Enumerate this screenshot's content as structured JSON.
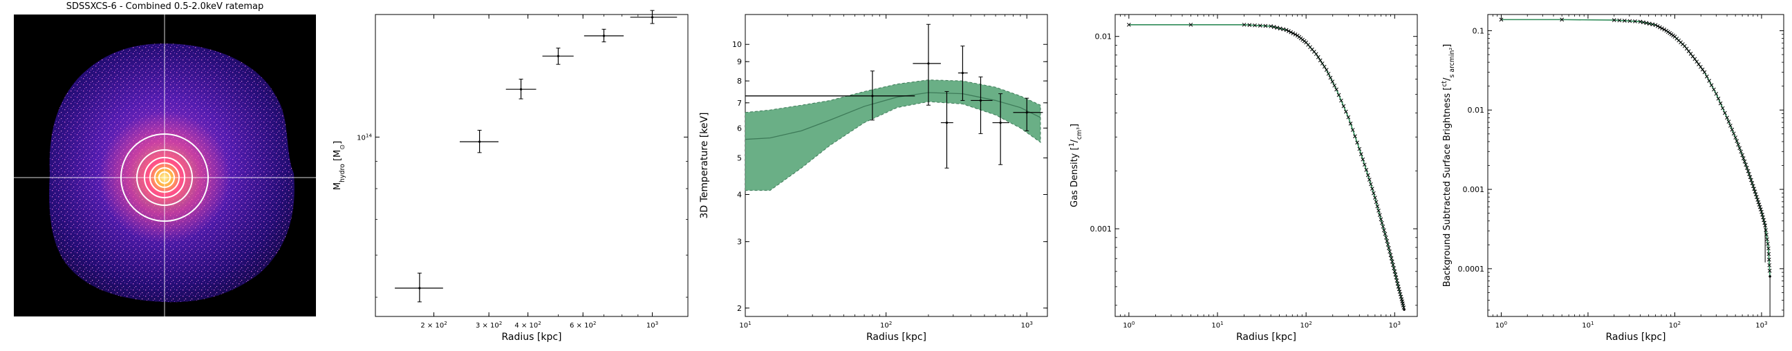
{
  "image_panel": {
    "title": "SDSSXCS-6 - Combined 0.5-2.0keV ratemap"
  },
  "chart_data": [
    {
      "type": "scatter",
      "xlabel": "Radius [kpc]",
      "ylabel": "M_hydro [M_⊙]",
      "ylabel_parts": {
        "main": "M",
        "sub": "hydro",
        "unit_open": " [M",
        "unit_sub": "⊙",
        "unit_close": "]"
      },
      "xscale": "log",
      "yscale": "log",
      "xlim": [
        130,
        1300
      ],
      "ylim": [
        46000000000000.0,
        170000000000000.0
      ],
      "xticks": [
        200,
        300,
        400,
        600,
        1000
      ],
      "xtick_labels": [
        {
          "base": "2 × 10",
          "exp": "2"
        },
        {
          "base": "3 × 10",
          "exp": "2"
        },
        {
          "base": "4 × 10",
          "exp": "2"
        },
        {
          "base": "6 × 10",
          "exp": "2"
        },
        {
          "base": "10",
          "exp": "3"
        }
      ],
      "yticks": [
        100000000000000.0
      ],
      "ytick_labels": [
        {
          "base": "10",
          "exp": "14"
        }
      ],
      "points": [
        {
          "x": 180,
          "y": 52000000000000.0,
          "xerr": [
            30,
            34
          ],
          "yerr": [
            3000000000000.0,
            3500000000000.0
          ]
        },
        {
          "x": 280,
          "y": 98000000000000.0,
          "xerr": [
            38,
            42
          ],
          "yerr": [
            4500000000000.0,
            5000000000000.0
          ]
        },
        {
          "x": 380,
          "y": 123000000000000.0,
          "xerr": [
            40,
            45
          ],
          "yerr": [
            5000000000000.0,
            5500000000000.0
          ]
        },
        {
          "x": 500,
          "y": 142000000000000.0,
          "xerr": [
            55,
            60
          ],
          "yerr": [
            5000000000000.0,
            5000000000000.0
          ]
        },
        {
          "x": 700,
          "y": 155000000000000.0,
          "xerr": [
            95,
            110
          ],
          "yerr": [
            4000000000000.0,
            4500000000000.0
          ]
        },
        {
          "x": 1000,
          "y": 168000000000000.0,
          "xerr": [
            150,
            200
          ],
          "yerr": [
            4500000000000.0,
            5000000000000.0
          ]
        }
      ],
      "colors": {
        "points": "#000000"
      }
    },
    {
      "type": "scatter",
      "xlabel": "Radius [kpc]",
      "ylabel": "3D Temperature [keV]",
      "xscale": "log",
      "yscale": "log",
      "xlim": [
        10,
        1400
      ],
      "ylim": [
        1.9,
        12
      ],
      "xticks": [
        10,
        100,
        1000
      ],
      "xtick_labels": [
        {
          "base": "10",
          "exp": "1"
        },
        {
          "base": "10",
          "exp": "2"
        },
        {
          "base": "10",
          "exp": "3"
        }
      ],
      "yticks": [
        2,
        3,
        4,
        5,
        6,
        7,
        8,
        9,
        10
      ],
      "ytick_labels": [
        "2",
        "3",
        "4",
        "5",
        "6",
        "7",
        "8",
        "9",
        "10"
      ],
      "points": [
        {
          "x": 80,
          "y": 7.3,
          "xerr": [
            70,
            80
          ],
          "yerr": [
            1.0,
            1.2
          ]
        },
        {
          "x": 200,
          "y": 8.9,
          "xerr": [
            45,
            45
          ],
          "yerr": [
            2.0,
            2.4
          ]
        },
        {
          "x": 270,
          "y": 6.2,
          "xerr": [
            25,
            30
          ],
          "yerr": [
            1.5,
            1.3
          ]
        },
        {
          "x": 350,
          "y": 8.4,
          "xerr": [
            25,
            30
          ],
          "yerr": [
            1.3,
            1.5
          ]
        },
        {
          "x": 470,
          "y": 7.1,
          "xerr": [
            70,
            100
          ],
          "yerr": [
            1.3,
            1.1
          ]
        },
        {
          "x": 650,
          "y": 6.2,
          "xerr": [
            80,
            100
          ],
          "yerr": [
            1.4,
            1.2
          ]
        },
        {
          "x": 1000,
          "y": 6.6,
          "xerr": [
            200,
            300
          ],
          "yerr": [
            0.7,
            0.6
          ]
        }
      ],
      "model_line": [
        {
          "x": 10,
          "y": 5.6
        },
        {
          "x": 15,
          "y": 5.65
        },
        {
          "x": 25,
          "y": 5.9
        },
        {
          "x": 40,
          "y": 6.3
        },
        {
          "x": 70,
          "y": 6.85
        },
        {
          "x": 120,
          "y": 7.25
        },
        {
          "x": 200,
          "y": 7.45
        },
        {
          "x": 350,
          "y": 7.4
        },
        {
          "x": 600,
          "y": 7.1
        },
        {
          "x": 900,
          "y": 6.8
        },
        {
          "x": 1250,
          "y": 6.4
        }
      ],
      "model_upper": [
        {
          "x": 10,
          "y": 6.6
        },
        {
          "x": 15,
          "y": 6.7
        },
        {
          "x": 25,
          "y": 6.9
        },
        {
          "x": 40,
          "y": 7.1
        },
        {
          "x": 70,
          "y": 7.5
        },
        {
          "x": 120,
          "y": 7.85
        },
        {
          "x": 200,
          "y": 8.05
        },
        {
          "x": 350,
          "y": 8.0
        },
        {
          "x": 600,
          "y": 7.7
        },
        {
          "x": 900,
          "y": 7.3
        },
        {
          "x": 1250,
          "y": 6.9
        }
      ],
      "model_lower": [
        {
          "x": 10,
          "y": 4.1
        },
        {
          "x": 15,
          "y": 4.1
        },
        {
          "x": 25,
          "y": 4.7
        },
        {
          "x": 40,
          "y": 5.4
        },
        {
          "x": 70,
          "y": 6.2
        },
        {
          "x": 120,
          "y": 6.8
        },
        {
          "x": 200,
          "y": 7.05
        },
        {
          "x": 350,
          "y": 6.95
        },
        {
          "x": 600,
          "y": 6.5
        },
        {
          "x": 900,
          "y": 6.0
        },
        {
          "x": 1250,
          "y": 5.5
        }
      ],
      "horizontal_bar": {
        "x0": 10,
        "x1": 160,
        "y": 7.3
      },
      "colors": {
        "band": "#6aaf86",
        "line": "#3d7a58",
        "points": "#000000"
      }
    },
    {
      "type": "line",
      "xlabel": "Radius [kpc]",
      "ylabel": "Gas Density [1/cm³]",
      "ylabel_parts": {
        "main": "Gas Density [",
        "num": "1",
        "den": "cm³",
        "close": "]"
      },
      "xscale": "log",
      "yscale": "log",
      "xlim": [
        0.7,
        1800
      ],
      "ylim": [
        0.00035,
        0.013
      ],
      "xticks": [
        1,
        10,
        100,
        1000
      ],
      "xtick_labels": [
        {
          "base": "10",
          "exp": "0"
        },
        {
          "base": "10",
          "exp": "1"
        },
        {
          "base": "10",
          "exp": "2"
        },
        {
          "base": "10",
          "exp": "3"
        }
      ],
      "yticks": [
        0.001,
        0.01
      ],
      "ytick_labels": [
        "0.001",
        "0.01"
      ],
      "x": [
        1,
        5,
        20,
        40,
        60,
        80,
        100,
        130,
        170,
        220,
        300,
        400,
        500,
        600,
        700,
        800,
        900,
        1000,
        1100,
        1200,
        1280
      ],
      "y": [
        0.0115,
        0.0115,
        0.0115,
        0.0113,
        0.0108,
        0.0101,
        0.0093,
        0.0081,
        0.0067,
        0.0053,
        0.0038,
        0.0026,
        0.0019,
        0.00145,
        0.00112,
        0.0009,
        0.00073,
        0.0006,
        0.0005,
        0.00043,
        0.00038
      ],
      "colors": {
        "line": "#2e8b57",
        "points": "#000000"
      }
    },
    {
      "type": "line",
      "xlabel": "Radius [kpc]",
      "ylabel": "Background Subtracted Surface Brightness [ct/(s arcmin²)]",
      "ylabel_parts": {
        "main": "Background Subtracted Surface Brightness [",
        "num": "ct",
        "den": "s arcmin²",
        "close": "]"
      },
      "xscale": "log",
      "yscale": "log",
      "xlim": [
        0.7,
        1800
      ],
      "ylim": [
        2.5e-05,
        0.16
      ],
      "xticks": [
        1,
        10,
        100,
        1000
      ],
      "xtick_labels": [
        {
          "base": "10",
          "exp": "0"
        },
        {
          "base": "10",
          "exp": "1"
        },
        {
          "base": "10",
          "exp": "2"
        },
        {
          "base": "10",
          "exp": "3"
        }
      ],
      "yticks": [
        0.0001,
        0.001,
        0.01,
        0.1
      ],
      "ytick_labels": [
        "0.0001",
        "0.001",
        "0.01",
        "0.1"
      ],
      "x": [
        1,
        5,
        20,
        40,
        60,
        80,
        100,
        130,
        170,
        220,
        300,
        400,
        500,
        600,
        700,
        800,
        900,
        1000,
        1100,
        1200,
        1250
      ],
      "y": [
        0.138,
        0.138,
        0.136,
        0.13,
        0.118,
        0.1,
        0.084,
        0.064,
        0.044,
        0.03,
        0.016,
        0.008,
        0.0045,
        0.0027,
        0.0017,
        0.0011,
        0.00074,
        0.00052,
        0.00035,
        0.00018,
        8e-05
      ],
      "colors": {
        "line": "#2e8b57",
        "points": "#000000"
      }
    }
  ]
}
